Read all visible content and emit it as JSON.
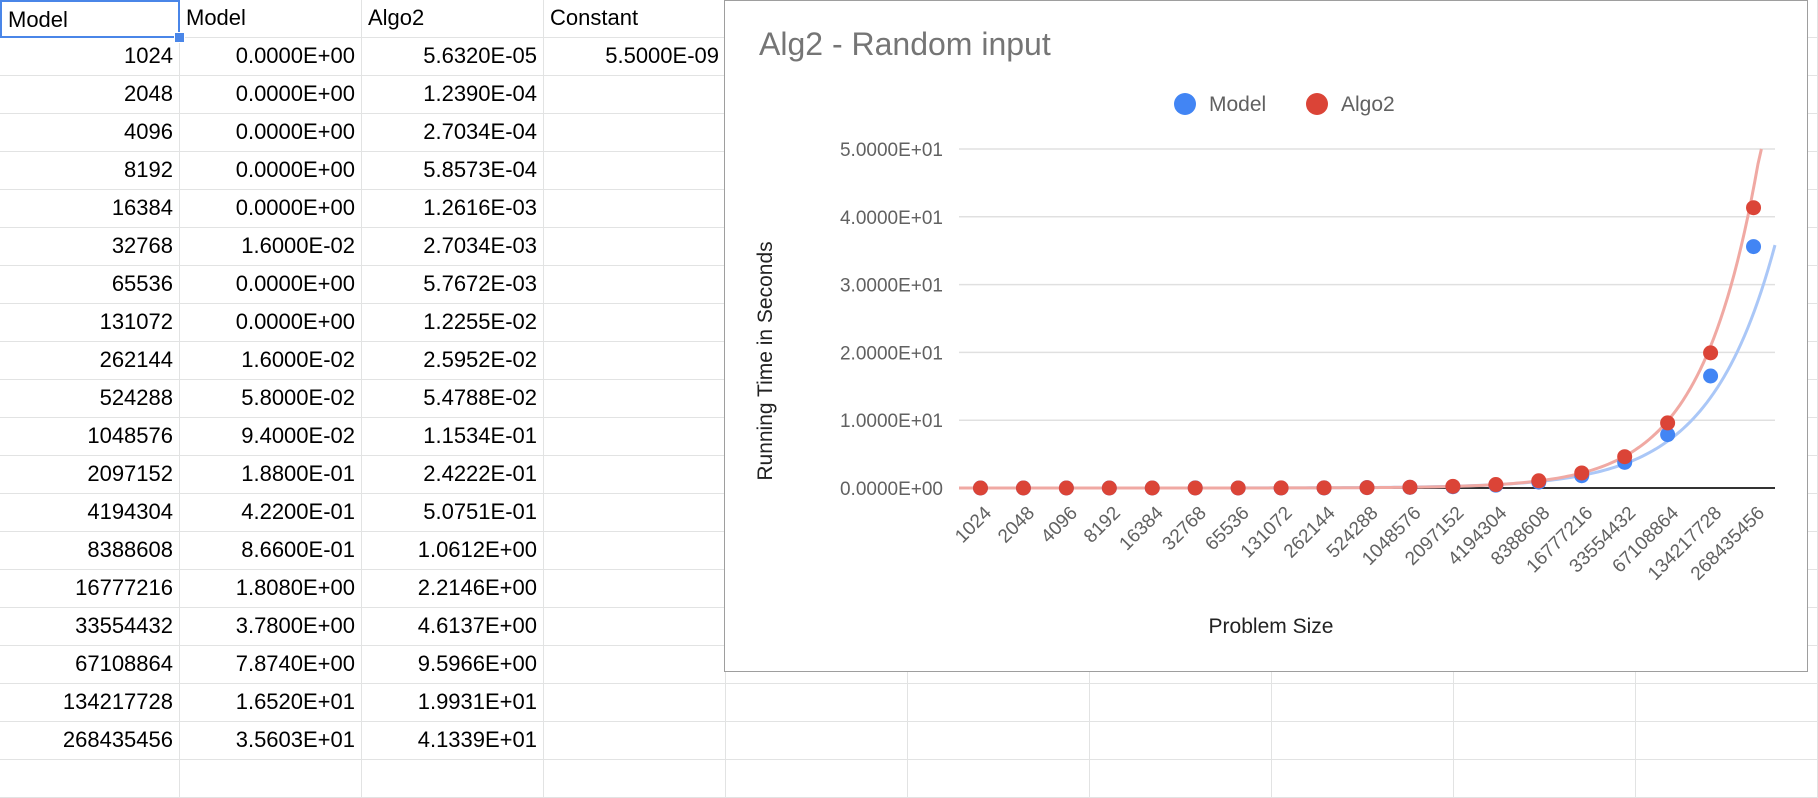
{
  "sheet": {
    "columns": [
      "Model",
      "Model",
      "Algo2",
      "Constant"
    ],
    "constant_value": "5.5000E-09",
    "rows": [
      [
        "1024",
        "0.0000E+00",
        "5.6320E-05"
      ],
      [
        "2048",
        "0.0000E+00",
        "1.2390E-04"
      ],
      [
        "4096",
        "0.0000E+00",
        "2.7034E-04"
      ],
      [
        "8192",
        "0.0000E+00",
        "5.8573E-04"
      ],
      [
        "16384",
        "0.0000E+00",
        "1.2616E-03"
      ],
      [
        "32768",
        "1.6000E-02",
        "2.7034E-03"
      ],
      [
        "65536",
        "0.0000E+00",
        "5.7672E-03"
      ],
      [
        "131072",
        "0.0000E+00",
        "1.2255E-02"
      ],
      [
        "262144",
        "1.6000E-02",
        "2.5952E-02"
      ],
      [
        "524288",
        "5.8000E-02",
        "5.4788E-02"
      ],
      [
        "1048576",
        "9.4000E-02",
        "1.1534E-01"
      ],
      [
        "2097152",
        "1.8800E-01",
        "2.4222E-01"
      ],
      [
        "4194304",
        "4.2200E-01",
        "5.0751E-01"
      ],
      [
        "8388608",
        "8.6600E-01",
        "1.0612E+00"
      ],
      [
        "16777216",
        "1.8080E+00",
        "2.2146E+00"
      ],
      [
        "33554432",
        "3.7800E+00",
        "4.6137E+00"
      ],
      [
        "67108864",
        "7.8740E+00",
        "9.5966E+00"
      ],
      [
        "134217728",
        "1.6520E+01",
        "1.9931E+01"
      ],
      [
        "268435456",
        "3.5603E+01",
        "4.1339E+01"
      ]
    ]
  },
  "colors": {
    "model": "#4285f4",
    "model_trend": "#aac7f7",
    "algo2": "#db4437",
    "algo2_trend": "#f0a9a3",
    "gridline": "#e0e0e0",
    "baseline": "#333333",
    "selection": "#4a86e8"
  },
  "chart_data": {
    "type": "scatter",
    "title": "Alg2 - Random input",
    "xlabel": "Problem Size",
    "ylabel": "Running Time in Seconds",
    "legend_position": "top",
    "trendlines": true,
    "categories": [
      "1024",
      "2048",
      "4096",
      "8192",
      "16384",
      "32768",
      "65536",
      "131072",
      "262144",
      "524288",
      "1048576",
      "2097152",
      "4194304",
      "8388608",
      "16777216",
      "33554432",
      "67108864",
      "134217728",
      "268435456"
    ],
    "series": [
      {
        "name": "Model",
        "values": [
          0,
          0,
          0,
          0,
          0,
          0.016,
          0,
          0,
          0.016,
          0.058,
          0.094,
          0.188,
          0.422,
          0.866,
          1.808,
          3.78,
          7.874,
          16.52,
          35.603
        ]
      },
      {
        "name": "Algo2",
        "values": [
          5.632e-05,
          0.0001239,
          0.00027034,
          0.00058573,
          0.0012616,
          0.0027034,
          0.0057672,
          0.012255,
          0.025952,
          0.054788,
          0.11534,
          0.24222,
          0.50751,
          1.0612,
          2.2146,
          4.6137,
          9.5966,
          19.931,
          41.339
        ]
      }
    ],
    "yticks": [
      "0.0000E+00",
      "1.0000E+01",
      "2.0000E+01",
      "3.0000E+01",
      "4.0000E+01",
      "5.0000E+01"
    ],
    "ylim": [
      0,
      50
    ],
    "grid": true
  }
}
